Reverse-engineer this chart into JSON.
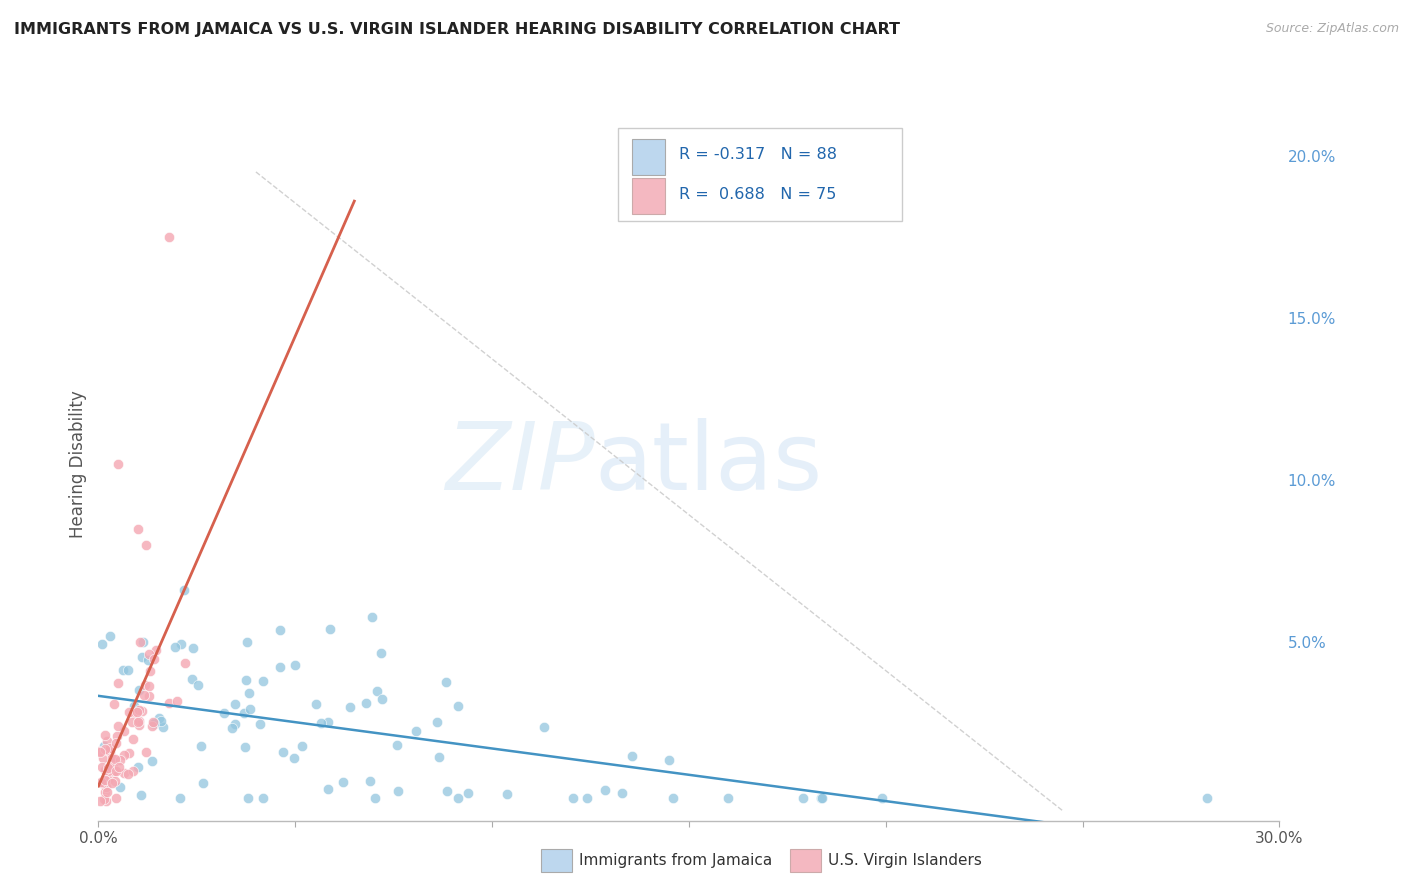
{
  "title": "IMMIGRANTS FROM JAMAICA VS U.S. VIRGIN ISLANDER HEARING DISABILITY CORRELATION CHART",
  "source": "Source: ZipAtlas.com",
  "ylabel": "Hearing Disability",
  "xlim": [
    0.0,
    0.3
  ],
  "ylim": [
    -0.005,
    0.215
  ],
  "watermark_zip": "ZIP",
  "watermark_atlas": "atlas",
  "blue_color": "#92c5de",
  "pink_color": "#f4a7b2",
  "blue_line_color": "#4393c3",
  "pink_line_color": "#d6604d",
  "legend_blue_fill": "#bdd7ee",
  "legend_pink_fill": "#f4b8c1",
  "background_color": "#ffffff",
  "grid_color": "#d0d0d0",
  "ref_line_color": "#cccccc",
  "right_tick_color": "#5b9bd5",
  "title_color": "#222222",
  "ylabel_color": "#555555",
  "blue_r_text": "R = -0.317",
  "blue_n_text": "N = 88",
  "pink_r_text": "R =  0.688",
  "pink_n_text": "N = 75",
  "legend_r_color": "#2166ac",
  "legend_n_color": "#2166ac",
  "bottom_legend_blue": "Immigrants from Jamaica",
  "bottom_legend_pink": "U.S. Virgin Islanders"
}
